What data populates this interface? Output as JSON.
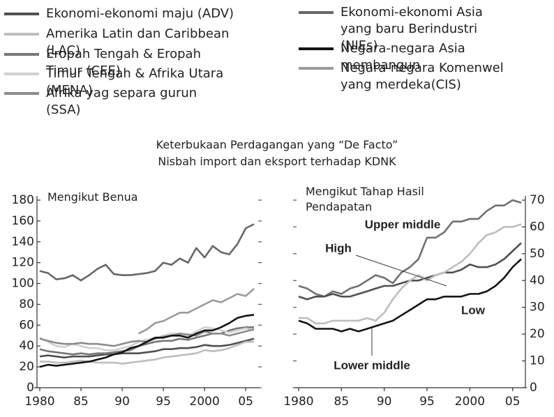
{
  "title": "Keterbukaan Perdagangan yang “De Facto”",
  "subtitle": "Nisbah import dan eksport terhadap KDNK",
  "chart_data": [
    {
      "type": "line",
      "title": "Mengikut Benua",
      "yaxis_side": "left",
      "legend": "top",
      "x": [
        1980,
        1981,
        1982,
        1983,
        1984,
        1985,
        1986,
        1987,
        1988,
        1989,
        1990,
        1991,
        1992,
        1993,
        1994,
        1995,
        1996,
        1997,
        1998,
        1999,
        2000,
        2001,
        2002,
        2003,
        2004,
        2005,
        2006
      ],
      "xlim": [
        1980,
        2006
      ],
      "xticks": [
        1980,
        {
          "value": 1985,
          "label": "85"
        },
        {
          "value": 1990,
          "label": "90"
        },
        {
          "value": 1995,
          "label": "95"
        },
        2000,
        {
          "value": 2005,
          "label": "05"
        }
      ],
      "ylim": [
        0,
        180
      ],
      "yticks": [
        0,
        20,
        40,
        60,
        80,
        100,
        120,
        140,
        160,
        180
      ],
      "series": [
        {
          "name": "Ekonomi-ekonomi maju (ADV)",
          "color": "#505050",
          "values": [
            30,
            31,
            30,
            29,
            30,
            30,
            30,
            31,
            32,
            32,
            33,
            33,
            33,
            34,
            35,
            37,
            37,
            38,
            38,
            39,
            41,
            40,
            40,
            41,
            43,
            45,
            47
          ]
        },
        {
          "name": "Amerika Latin dan Caribbean (LAC)",
          "color": "#bdbdbd",
          "values": [
            25,
            25,
            24,
            24,
            25,
            26,
            25,
            24,
            24,
            24,
            23,
            24,
            25,
            26,
            27,
            29,
            30,
            31,
            32,
            33,
            36,
            35,
            36,
            38,
            41,
            44,
            44
          ]
        },
        {
          "name": "Eropah Tengah & Eropah Timur (CEE)",
          "color": "#777777",
          "values": [
            37,
            35,
            34,
            33,
            32,
            33,
            32,
            33,
            33,
            34,
            35,
            36,
            40,
            42,
            44,
            45,
            45,
            47,
            46,
            48,
            50,
            52,
            52,
            55,
            57,
            58,
            58
          ]
        },
        {
          "name": "Timur Tengah & Afrika Utara (MENA)",
          "color": "#d0d0d0",
          "values": [
            48,
            44,
            40,
            39,
            42,
            40,
            38,
            38,
            36,
            36,
            38,
            40,
            44,
            46,
            48,
            50,
            52,
            52,
            50,
            54,
            58,
            57,
            55,
            53,
            55,
            57,
            55
          ]
        },
        {
          "name": "Afrika yag separa gurun (SSA)",
          "color": "#8c8c8c",
          "values": [
            47,
            45,
            43,
            42,
            42,
            43,
            42,
            42,
            41,
            40,
            42,
            44,
            45,
            44,
            47,
            49,
            50,
            52,
            51,
            50,
            54,
            52,
            52,
            50,
            52,
            54,
            56
          ]
        },
        {
          "name": "Ekonomi-ekonomi Asia yang baru Berindustri (NIEs)",
          "color": "#666666",
          "values": [
            112,
            110,
            104,
            105,
            108,
            103,
            108,
            114,
            118,
            109,
            108,
            108,
            109,
            110,
            112,
            120,
            118,
            124,
            120,
            134,
            125,
            136,
            130,
            128,
            138,
            153,
            157
          ]
        },
        {
          "name": "Negara-negara Asia membangun",
          "color": "#141414",
          "values": [
            20,
            22,
            21,
            22,
            23,
            24,
            25,
            27,
            29,
            32,
            34,
            38,
            40,
            44,
            48,
            48,
            50,
            50,
            48,
            52,
            55,
            55,
            58,
            62,
            67,
            69,
            70
          ]
        },
        {
          "name": "Negara-negara Komenwel yang merdeka(CIS)",
          "color": "#9a9a9a",
          "values": [
            null,
            null,
            null,
            null,
            null,
            null,
            null,
            null,
            null,
            null,
            null,
            null,
            52,
            56,
            62,
            64,
            68,
            72,
            72,
            76,
            80,
            84,
            82,
            86,
            90,
            88,
            95
          ]
        }
      ]
    },
    {
      "type": "line",
      "title": "Mengikut Tahap Hasil Pendapatan",
      "yaxis_side": "right",
      "legend": "inline",
      "x": [
        1980,
        1981,
        1982,
        1983,
        1984,
        1985,
        1986,
        1987,
        1988,
        1989,
        1990,
        1991,
        1992,
        1993,
        1994,
        1995,
        1996,
        1997,
        1998,
        1999,
        2000,
        2001,
        2002,
        2003,
        2004,
        2005,
        2006
      ],
      "xlim": [
        1980,
        2006
      ],
      "xticks": [
        1980,
        {
          "value": 1985,
          "label": "85"
        },
        {
          "value": 1990,
          "label": "90"
        },
        {
          "value": 1995,
          "label": "95"
        },
        2000,
        {
          "value": 2005,
          "label": "05"
        }
      ],
      "ylim": [
        0,
        70
      ],
      "yticks": [
        0,
        10,
        20,
        30,
        40,
        50,
        60,
        70
      ],
      "series": [
        {
          "name": "Upper middle",
          "color": "#707070",
          "values": [
            38,
            37,
            35,
            34,
            36,
            35,
            37,
            38,
            40,
            42,
            41,
            39,
            43,
            45,
            48,
            56,
            56,
            58,
            62,
            62,
            63,
            63,
            66,
            68,
            68,
            70,
            69
          ]
        },
        {
          "name": "High",
          "color": "#505050",
          "values": [
            34,
            33,
            34,
            34,
            35,
            34,
            34,
            35,
            36,
            37,
            38,
            38,
            39,
            40,
            40,
            41,
            42,
            43,
            43,
            44,
            46,
            45,
            45,
            46,
            48,
            51,
            54
          ]
        },
        {
          "name": "Lower middle",
          "color": "#bdbdbd",
          "values": [
            26,
            26,
            24,
            24,
            25,
            25,
            25,
            25,
            26,
            25,
            28,
            33,
            37,
            40,
            42,
            40,
            42,
            43,
            45,
            47,
            50,
            54,
            57,
            58,
            60,
            60,
            61
          ]
        },
        {
          "name": "Low",
          "color": "#141414",
          "values": [
            25,
            24,
            22,
            22,
            22,
            21,
            22,
            21,
            22,
            23,
            24,
            25,
            27,
            29,
            31,
            33,
            33,
            34,
            34,
            34,
            35,
            35,
            36,
            38,
            41,
            45,
            48
          ]
        }
      ]
    }
  ]
}
